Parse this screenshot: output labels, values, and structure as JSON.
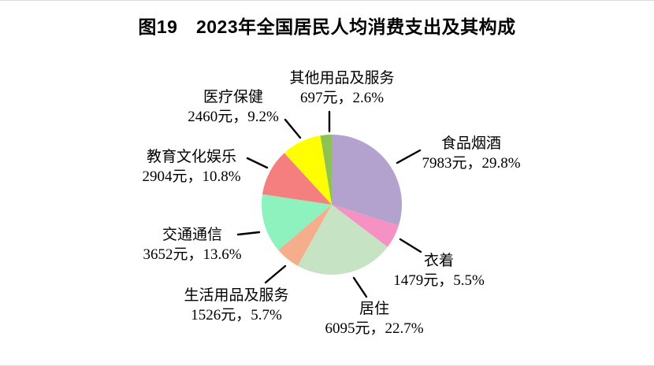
{
  "title": "图19　2023年全国居民人均消费支出及其构成",
  "chart_data": {
    "type": "pie",
    "title": "图19 2023年全国居民人均消费支出及其构成",
    "unit": "元",
    "start": "top",
    "direction": "clockwise",
    "legend_position": "callout-labels",
    "slices": [
      {
        "id": "food-tobacco-alcohol",
        "label": "食品烟酒",
        "value_yuan": 7983,
        "percent": 29.8,
        "display": "7983元，29.8%",
        "color": "#b4a2ce"
      },
      {
        "id": "clothing",
        "label": "衣着",
        "value_yuan": 1479,
        "percent": 5.5,
        "display": "1479元，5.5%",
        "color": "#f692c3"
      },
      {
        "id": "housing",
        "label": "居住",
        "value_yuan": 6095,
        "percent": 22.7,
        "display": "6095元，22.7%",
        "color": "#c6e4c3"
      },
      {
        "id": "household-goods-services",
        "label": "生活用品及服务",
        "value_yuan": 1526,
        "percent": 5.7,
        "display": "1526元，5.7%",
        "color": "#f4ae8b"
      },
      {
        "id": "transport-communication",
        "label": "交通通信",
        "value_yuan": 3652,
        "percent": 13.6,
        "display": "3652元，13.6%",
        "color": "#8df2be"
      },
      {
        "id": "education-culture-entertainment",
        "label": "教育文化娱乐",
        "value_yuan": 2904,
        "percent": 10.8,
        "display": "2904元，10.8%",
        "color": "#f57f7f"
      },
      {
        "id": "healthcare",
        "label": "医疗保健",
        "value_yuan": 2460,
        "percent": 9.2,
        "display": "2460元，9.2%",
        "color": "#ffff00"
      },
      {
        "id": "other-goods-services",
        "label": "其他用品及服务",
        "value_yuan": 697,
        "percent": 2.6,
        "display": "697元，2.6%",
        "color": "#8dc353"
      }
    ]
  }
}
